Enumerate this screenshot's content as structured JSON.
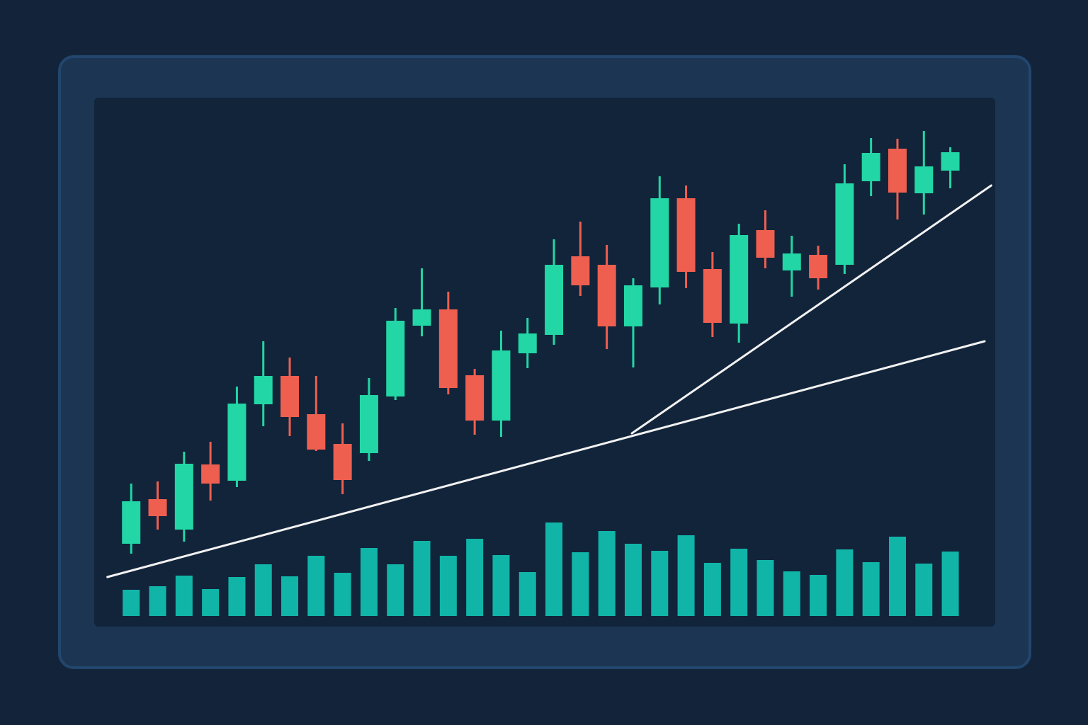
{
  "chart_data": {
    "type": "candlestick",
    "up_color": "#22d6a5",
    "down_color": "#ee5f50",
    "xlim": [
      -1.4,
      32.7
    ],
    "ylim": [
      0,
      65
    ],
    "open": [
      3.2,
      9.5,
      5.2,
      14.4,
      12.1,
      22.9,
      26.9,
      21.5,
      17.3,
      16.0,
      24.0,
      34.0,
      36.3,
      27.0,
      20.6,
      30.1,
      32.7,
      43.8,
      42.6,
      33.9,
      39.4,
      52.0,
      42.0,
      34.3,
      47.5,
      41.8,
      44.0,
      42.6,
      54.4,
      59.0,
      52.7,
      55.9
    ],
    "high": [
      11.7,
      12.0,
      16.2,
      17.6,
      25.4,
      31.8,
      29.5,
      26.9,
      20.2,
      26.6,
      36.5,
      42.1,
      38.8,
      27.9,
      33.3,
      35.1,
      46.2,
      48.7,
      45.4,
      40.7,
      55.1,
      53.8,
      44.4,
      48.4,
      50.3,
      46.7,
      45.3,
      56.8,
      60.5,
      60.4,
      61.5,
      59.2
    ],
    "low": [
      1.8,
      5.2,
      3.5,
      9.3,
      11.2,
      19.8,
      18.4,
      16.3,
      10.2,
      14.9,
      23.5,
      32.5,
      24.3,
      18.6,
      18.3,
      28.0,
      31.3,
      38.2,
      30.7,
      28.1,
      37.0,
      39.3,
      32.4,
      31.6,
      42.1,
      38.1,
      39.1,
      41.3,
      52.3,
      49.0,
      49.7,
      53.4
    ],
    "close": [
      9.2,
      7.1,
      14.5,
      11.7,
      23.0,
      26.9,
      21.1,
      16.5,
      12.2,
      24.2,
      34.7,
      36.3,
      25.2,
      20.6,
      30.5,
      32.9,
      42.6,
      39.7,
      33.9,
      39.7,
      52.0,
      41.6,
      34.4,
      46.8,
      43.6,
      44.2,
      40.7,
      54.1,
      58.4,
      52.8,
      56.5,
      58.5
    ],
    "volume": {
      "color": "#10b5a8",
      "ylim": [
        0,
        14
      ],
      "values": [
        3.7,
        4.2,
        5.7,
        3.8,
        5.5,
        7.3,
        5.6,
        8.5,
        6.1,
        9.6,
        7.3,
        10.6,
        8.5,
        10.9,
        8.6,
        6.2,
        13.2,
        9.0,
        12.0,
        10.2,
        9.2,
        11.4,
        7.5,
        9.5,
        7.9,
        6.3,
        5.8,
        9.4,
        7.6,
        11.2,
        7.4,
        9.1
      ]
    },
    "lines": [
      {
        "color": "#f2f2f2",
        "x": [
          -0.9,
          32.3
        ],
        "values": [
          -1.5,
          31.8
        ]
      },
      {
        "color": "#f2f2f2",
        "x": [
          18.95,
          32.55
        ],
        "values": [
          18.8,
          53.8
        ]
      }
    ]
  }
}
